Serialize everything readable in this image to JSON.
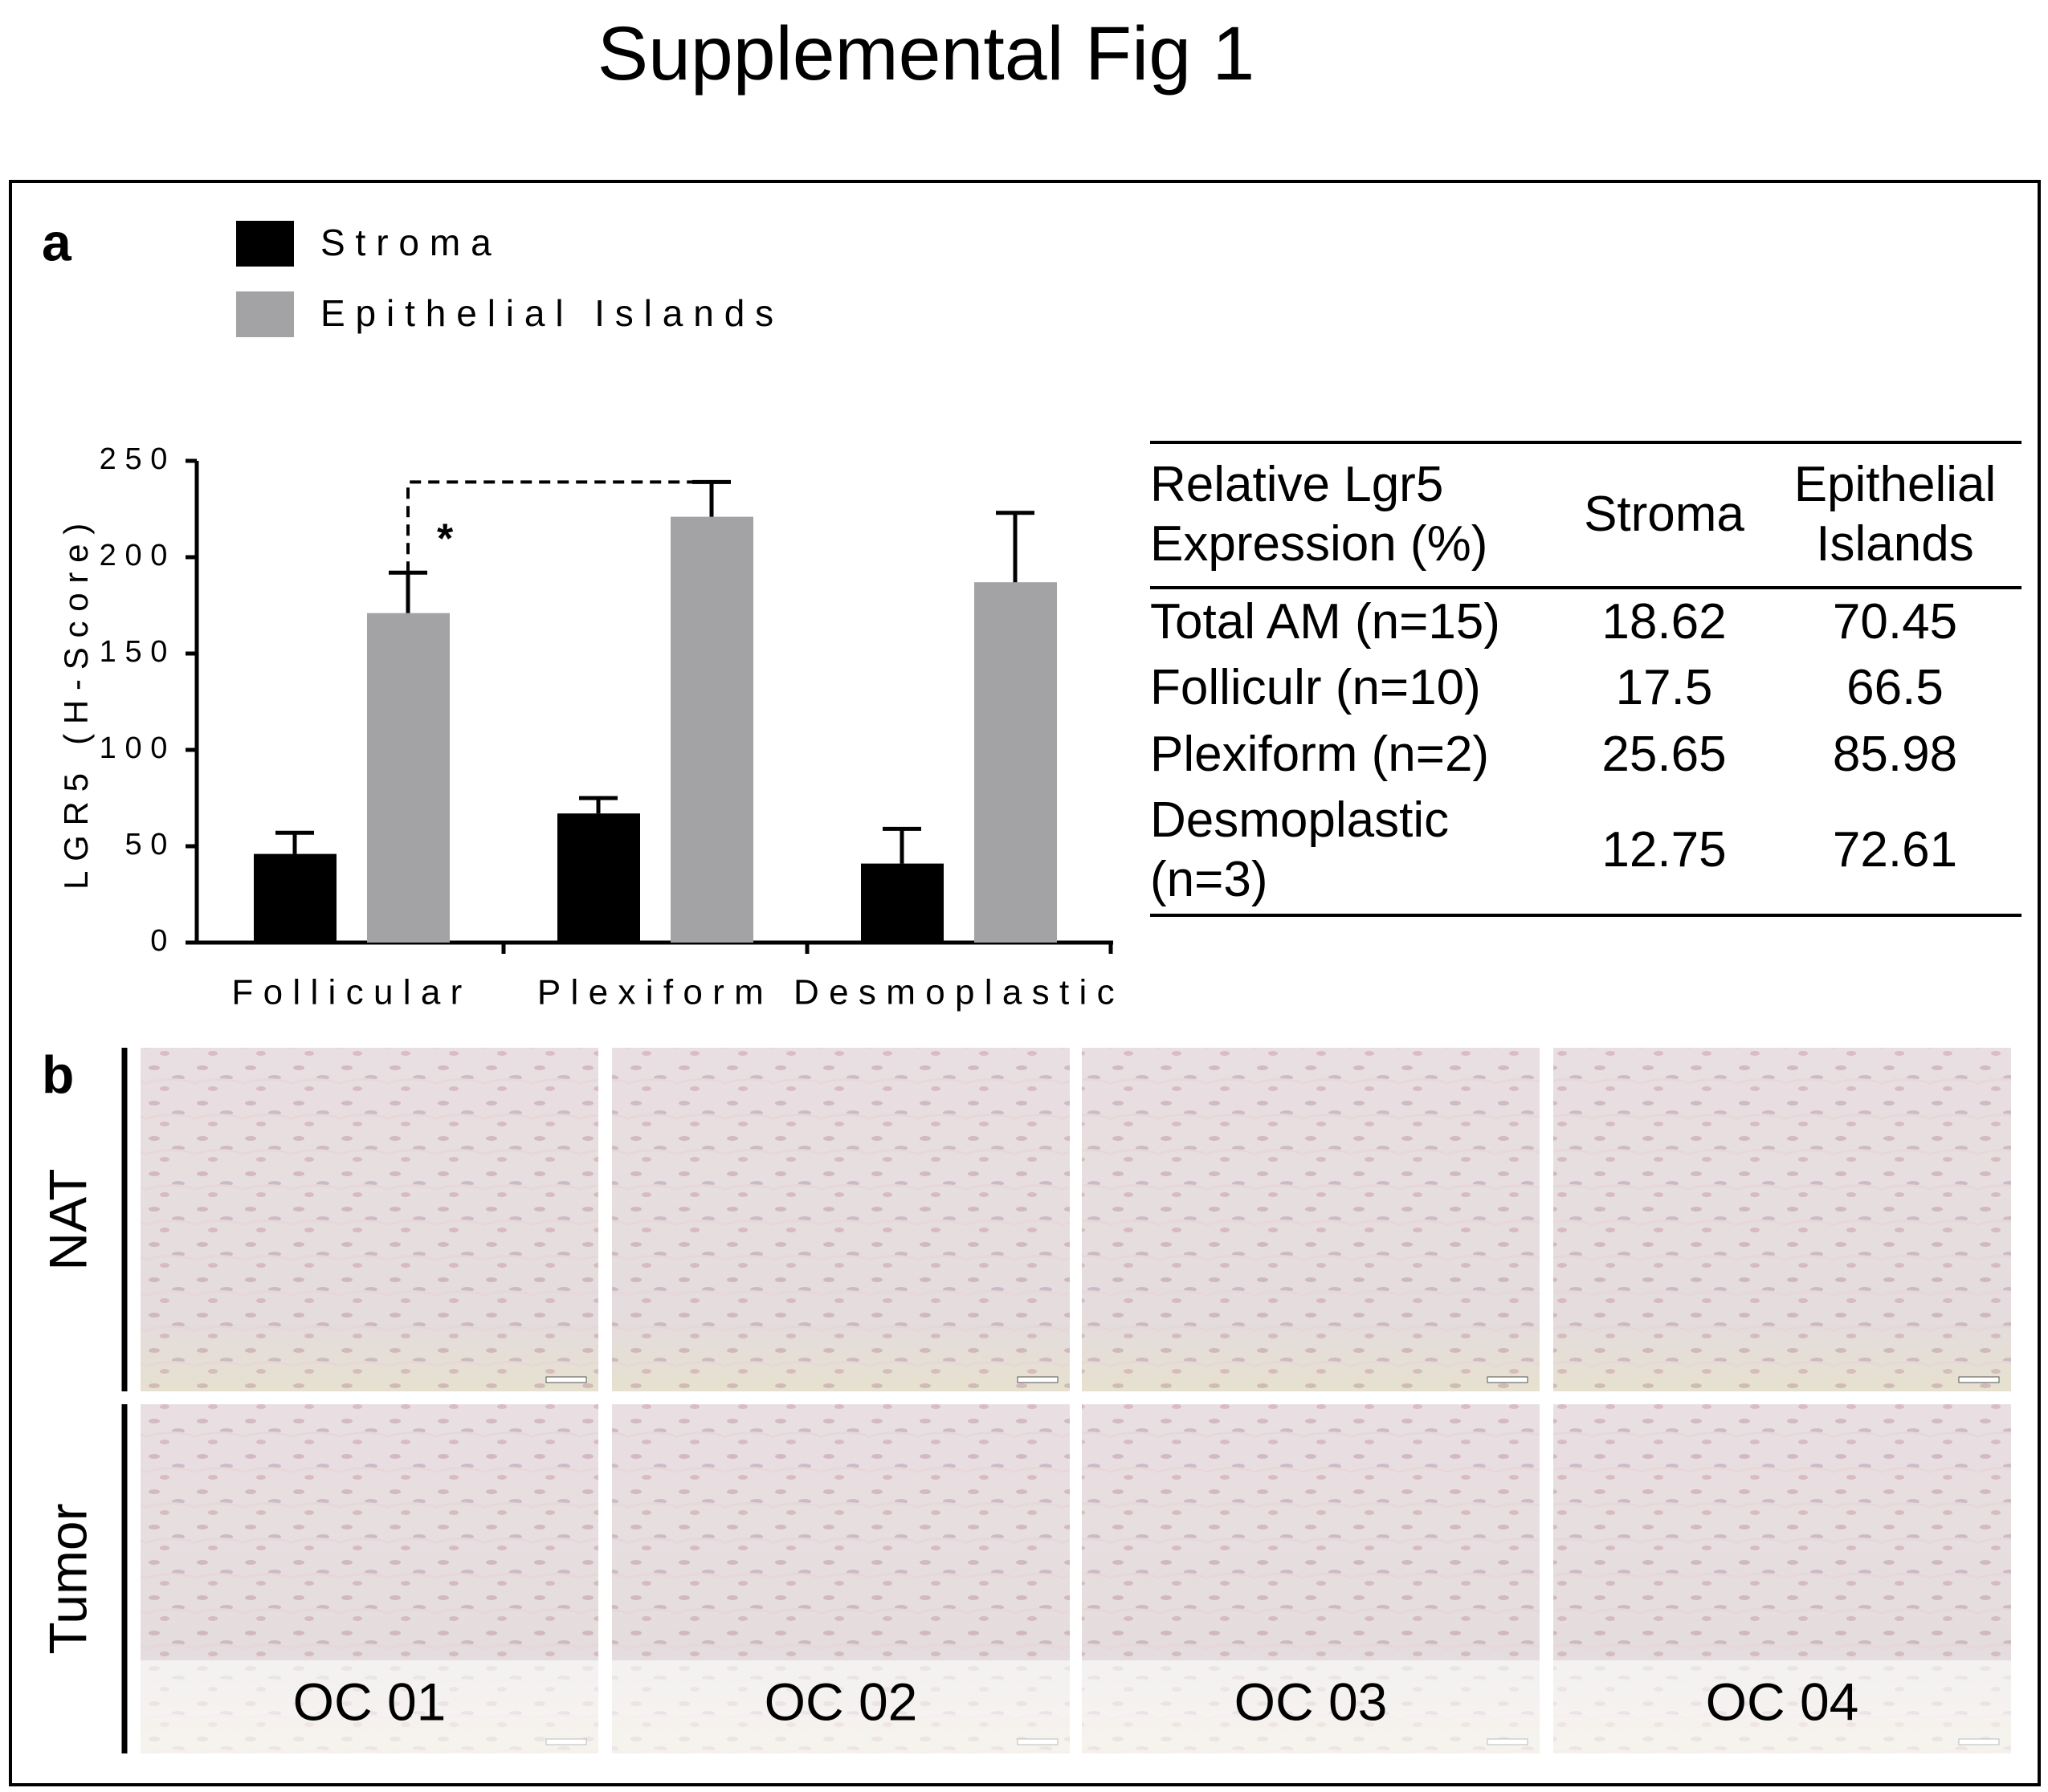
{
  "title": "Supplemental Fig 1",
  "panel_a": {
    "label": "a"
  },
  "chart_data": {
    "type": "bar",
    "y_label": "LGR5 (H-Score)",
    "categories": [
      "Follicular",
      "Plexiform",
      "Desmoplastic"
    ],
    "series": [
      {
        "name": "Stroma",
        "color": "#000000",
        "values": [
          46,
          67,
          41
        ],
        "errors": [
          11,
          8,
          18
        ]
      },
      {
        "name": "Epithelial Islands",
        "color": "#a3a3a6",
        "values": [
          171,
          221,
          187
        ],
        "errors": [
          21,
          18,
          36
        ]
      }
    ],
    "ylim": [
      0,
      250
    ],
    "yticks": [
      0,
      50,
      100,
      150,
      200,
      250
    ],
    "annotation": "*"
  },
  "table": {
    "header": [
      "Relative Lgr5 Expression (%)",
      "Stroma",
      "Epithelial Islands"
    ],
    "rows": [
      [
        "Total AM (n=15)",
        18.62,
        70.45
      ],
      [
        "Folliculr (n=10)",
        17.5,
        66.5
      ],
      [
        "Plexiform (n=2)",
        25.65,
        85.98
      ],
      [
        "Desmoplastic (n=3)",
        12.75,
        72.61
      ]
    ]
  },
  "panel_b": {
    "label": "b",
    "rows": [
      "NAT",
      "Tumor"
    ],
    "samples": [
      "OC 01",
      "OC 02",
      "OC 03",
      "OC 04"
    ]
  }
}
